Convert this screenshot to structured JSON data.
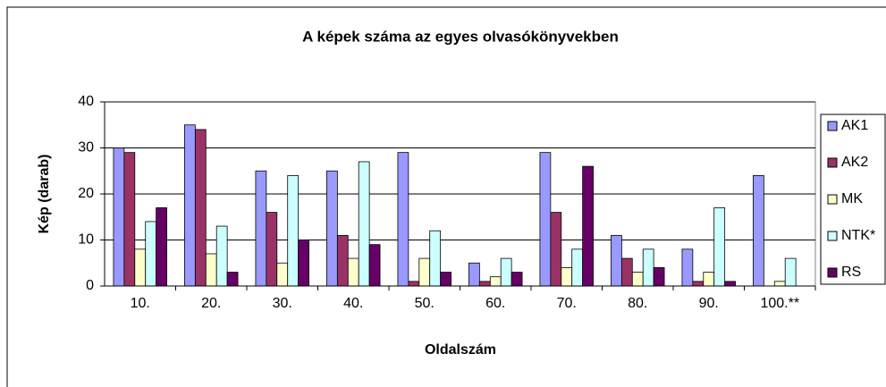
{
  "chart_data": {
    "type": "bar",
    "title": "A képek száma az egyes olvasókönyvekben",
    "x_label": "Oldalszám",
    "y_label": "Kép (darab)",
    "categories": [
      "10.",
      "20.",
      "30.",
      "40.",
      "50.",
      "60.",
      "70.",
      "80.",
      "90.",
      "100.**"
    ],
    "series": [
      {
        "name": "AK1",
        "color": "#9999ff",
        "values": [
          30,
          35,
          25,
          25,
          29,
          5,
          29,
          11,
          8,
          24
        ]
      },
      {
        "name": "AK2",
        "color": "#993366",
        "values": [
          29,
          34,
          16,
          11,
          1,
          1,
          16,
          6,
          1,
          0
        ]
      },
      {
        "name": "MK",
        "color": "#ffffcc",
        "values": [
          8,
          7,
          5,
          6,
          6,
          2,
          4,
          3,
          3,
          1
        ]
      },
      {
        "name": "NTK*",
        "color": "#ccffff",
        "values": [
          14,
          13,
          24,
          27,
          12,
          6,
          8,
          8,
          17,
          6
        ]
      },
      {
        "name": "RS",
        "color": "#660066",
        "values": [
          17,
          3,
          10,
          9,
          3,
          3,
          26,
          4,
          1,
          0
        ]
      }
    ],
    "ylim": [
      0,
      40
    ],
    "yticks": [
      0,
      10,
      20,
      30,
      40
    ],
    "grid": true,
    "legend": "right"
  }
}
